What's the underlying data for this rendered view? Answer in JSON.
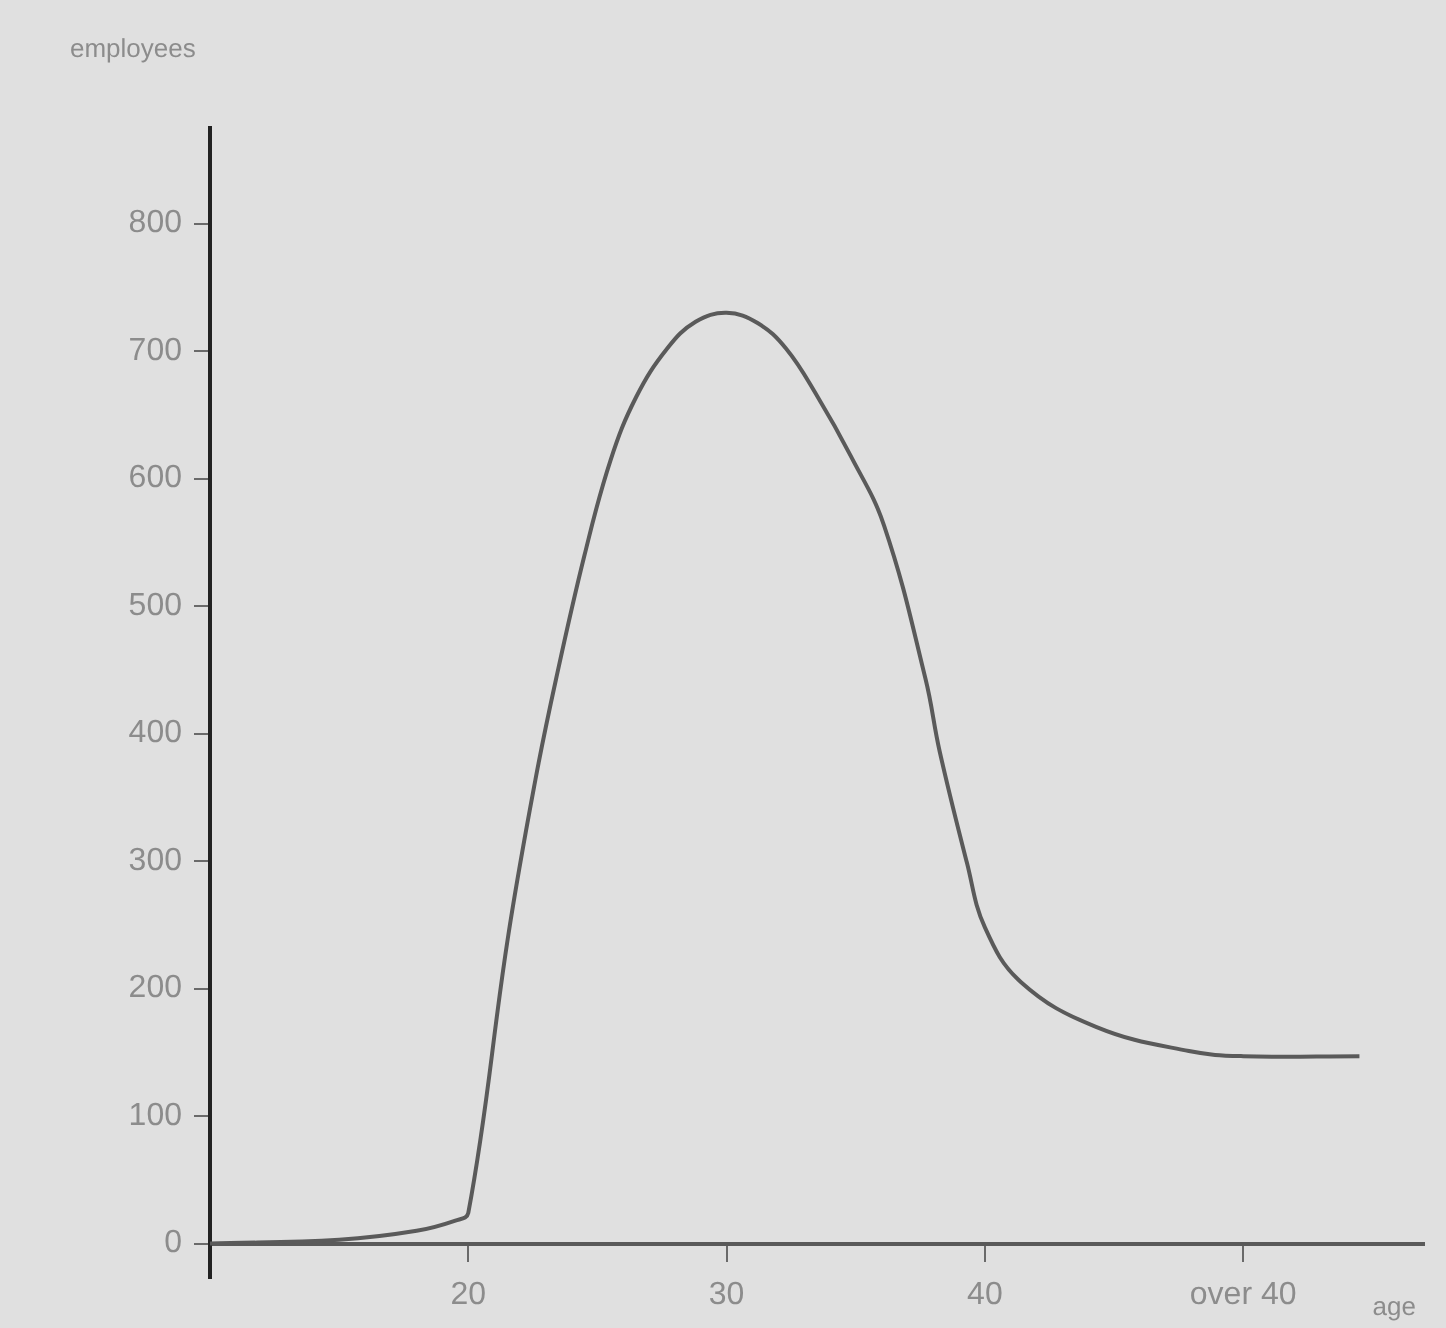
{
  "chart_data": {
    "type": "line",
    "xlabel": "age",
    "ylabel": "employees",
    "x": [
      10,
      15,
      18,
      19.5,
      20,
      21.55,
      22.6,
      23.4,
      24.5,
      25.5,
      26.5,
      27.7,
      28.8,
      30,
      31.2,
      32.3,
      33.5,
      34.8,
      36.1,
      37.7,
      38.25,
      39.3,
      40,
      41.4,
      44.3,
      47.9,
      50,
      54.5
    ],
    "series": [
      {
        "color": "#5a5a5a",
        "values": [
          0,
          3,
          10,
          18,
          24,
          242,
          364,
          443,
          540,
          614,
          664,
          702,
          723,
          730,
          722,
          702,
          665,
          618,
          563,
          443,
          386,
          299,
          248,
          205,
          170,
          151,
          147,
          147
        ]
      }
    ],
    "xlim": [
      10,
      57
    ],
    "xticks": [
      20,
      30,
      40,
      {
        "value": 50,
        "label": "over 40"
      }
    ],
    "ylim": [
      -27,
      875
    ],
    "yticks": [
      0,
      100,
      200,
      300,
      400,
      500,
      600,
      700,
      800
    ],
    "grid": false,
    "legend": false,
    "marker": "none",
    "line_style": "solid"
  }
}
